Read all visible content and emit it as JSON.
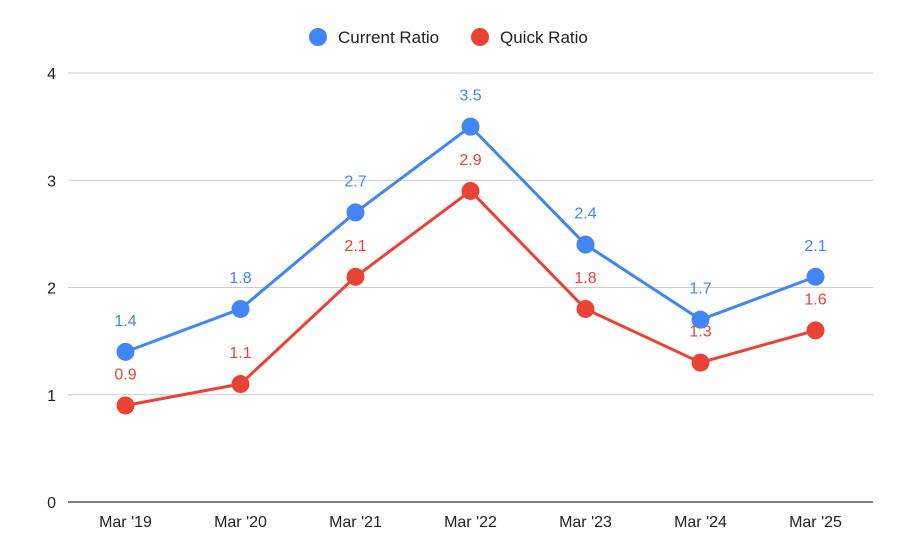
{
  "chart_data": {
    "type": "line",
    "title": "",
    "xlabel": "",
    "ylabel": "",
    "categories": [
      "Mar '19",
      "Mar '20",
      "Mar '21",
      "Mar '22",
      "Mar '23",
      "Mar '24",
      "Mar '25"
    ],
    "series": [
      {
        "name": "Current Ratio",
        "color": "#4285F4",
        "values": [
          1.4,
          1.8,
          2.7,
          3.5,
          2.4,
          1.7,
          2.1
        ]
      },
      {
        "name": "Quick Ratio",
        "color": "#EA4335",
        "values": [
          0.9,
          1.1,
          2.1,
          2.9,
          1.8,
          1.3,
          1.6
        ]
      }
    ],
    "ylim": [
      0,
      4
    ],
    "yticks": [
      "0",
      "1",
      "2",
      "3",
      "4"
    ],
    "grid": true,
    "legend_position": "top-center",
    "data_labels": true
  }
}
